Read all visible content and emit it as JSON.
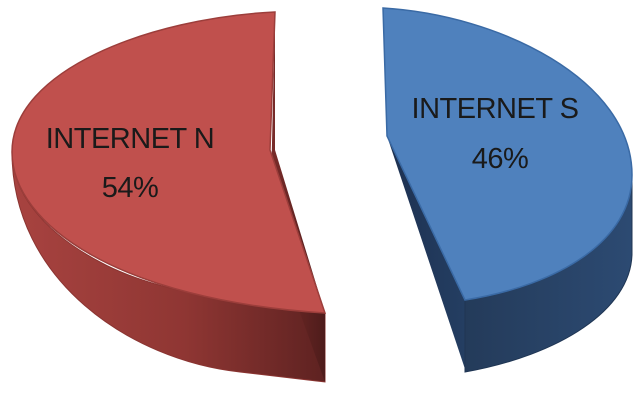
{
  "chart_data": {
    "type": "pie",
    "title": "",
    "legend": "none",
    "slices": [
      {
        "label": "INTERNET S",
        "percent": "46%",
        "value": 46,
        "color": "#4f81bd"
      },
      {
        "label": "INTERNET N",
        "percent": "54%",
        "value": 54,
        "color": "#c0504d"
      }
    ]
  }
}
